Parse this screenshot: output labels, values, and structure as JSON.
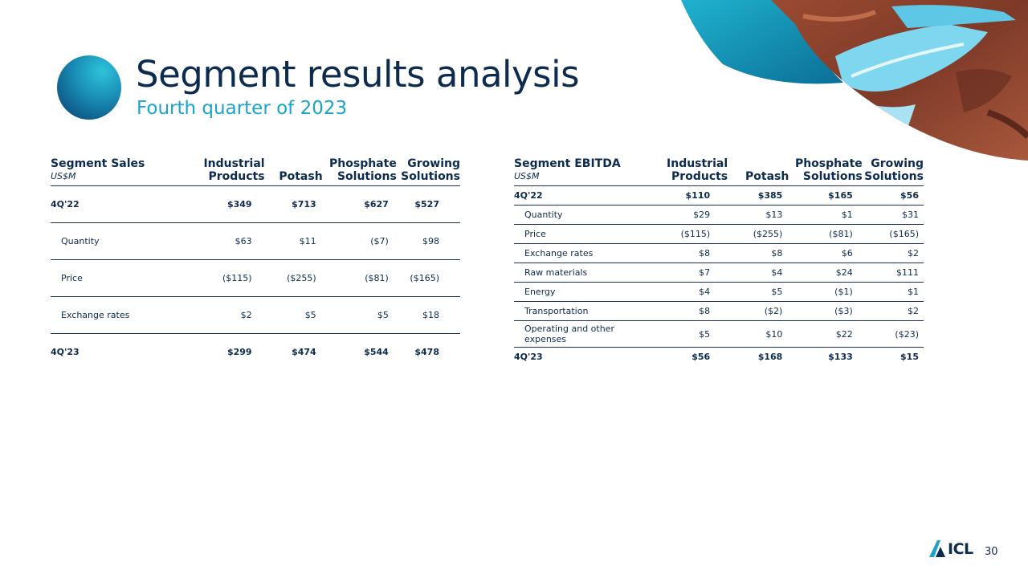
{
  "header": {
    "title": "Segment results analysis",
    "subtitle": "Fourth quarter of 2023"
  },
  "sales_table": {
    "title": "Segment Sales",
    "unit": "US$M",
    "columns": [
      "Industrial Products",
      "Potash",
      "Phosphate Solutions",
      "Growing Solutions"
    ],
    "rows": [
      {
        "label": "4Q'22",
        "values": [
          "$349",
          "$713",
          "$627",
          "$527"
        ],
        "bold": true
      },
      {
        "label": "Quantity",
        "values": [
          "$63",
          "$11",
          "($7)",
          "$98"
        ]
      },
      {
        "label": "Price",
        "values": [
          "($115)",
          "($255)",
          "($81)",
          "($165)"
        ]
      },
      {
        "label": "Exchange rates",
        "values": [
          "$2",
          "$5",
          "$5",
          "$18"
        ]
      },
      {
        "label": "4Q'23",
        "values": [
          "$299",
          "$474",
          "$544",
          "$478"
        ],
        "bold": true
      }
    ]
  },
  "ebitda_table": {
    "title": "Segment EBITDA",
    "unit": "US$M",
    "columns": [
      "Industrial Products",
      "Potash",
      "Phosphate Solutions",
      "Growing Solutions"
    ],
    "rows": [
      {
        "label": "4Q'22",
        "values": [
          "$110",
          "$385",
          "$165",
          "$56"
        ],
        "bold": true
      },
      {
        "label": "Quantity",
        "values": [
          "$29",
          "$13",
          "$1",
          "$31"
        ]
      },
      {
        "label": "Price",
        "values": [
          "($115)",
          "($255)",
          "($81)",
          "($165)"
        ]
      },
      {
        "label": "Exchange rates",
        "values": [
          "$8",
          "$8",
          "$6",
          "$2"
        ]
      },
      {
        "label": "Raw materials",
        "values": [
          "$7",
          "$4",
          "$24",
          "$111"
        ]
      },
      {
        "label": "Energy",
        "values": [
          "$4",
          "$5",
          "($1)",
          "$1"
        ]
      },
      {
        "label": "Transportation",
        "values": [
          "$8",
          "($2)",
          "($3)",
          "$2"
        ]
      },
      {
        "label": "Operating and other expenses",
        "values": [
          "$5",
          "$10",
          "$22",
          "($23)"
        ],
        "tall": true
      },
      {
        "label": "4Q'23",
        "values": [
          "$56",
          "$168",
          "$133",
          "$15"
        ],
        "bold": true
      }
    ]
  },
  "footer": {
    "logo_text": "ICL",
    "page_number": "30"
  },
  "colors": {
    "navy": "#0d2b4e",
    "accent": "#1ba3c9"
  }
}
